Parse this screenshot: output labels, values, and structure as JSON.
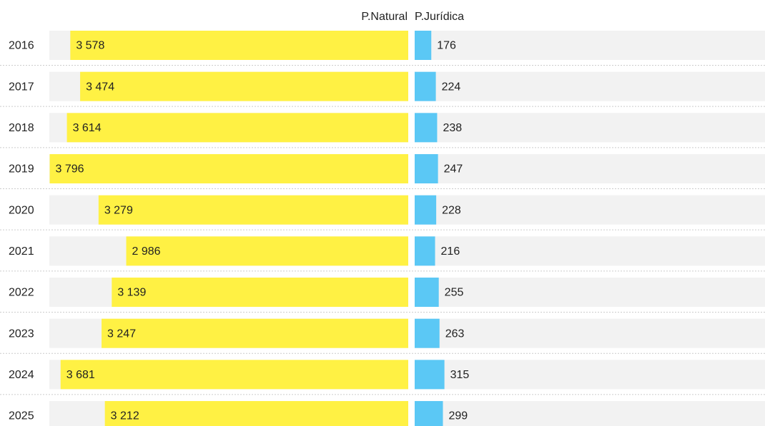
{
  "chart_data": {
    "type": "bar",
    "orientation": "diverging",
    "categories": [
      "2016",
      "2017",
      "2018",
      "2019",
      "2020",
      "2021",
      "2022",
      "2023",
      "2024",
      "2025"
    ],
    "xlim": [
      0,
      3800
    ],
    "series": [
      {
        "name": "P.Natural",
        "color": "#fff144",
        "values": [
          3578,
          3474,
          3614,
          3796,
          3279,
          2986,
          3139,
          3247,
          3681,
          3212
        ],
        "value_labels": [
          "3 578",
          "3 474",
          "3 614",
          "3 796",
          "3 279",
          "2 986",
          "3 139",
          "3 247",
          "3 681",
          "3 212"
        ]
      },
      {
        "name": "P.Jurídica",
        "color": "#5bc8f5",
        "values": [
          176,
          224,
          238,
          247,
          228,
          216,
          255,
          263,
          315,
          299
        ]
      }
    ]
  }
}
